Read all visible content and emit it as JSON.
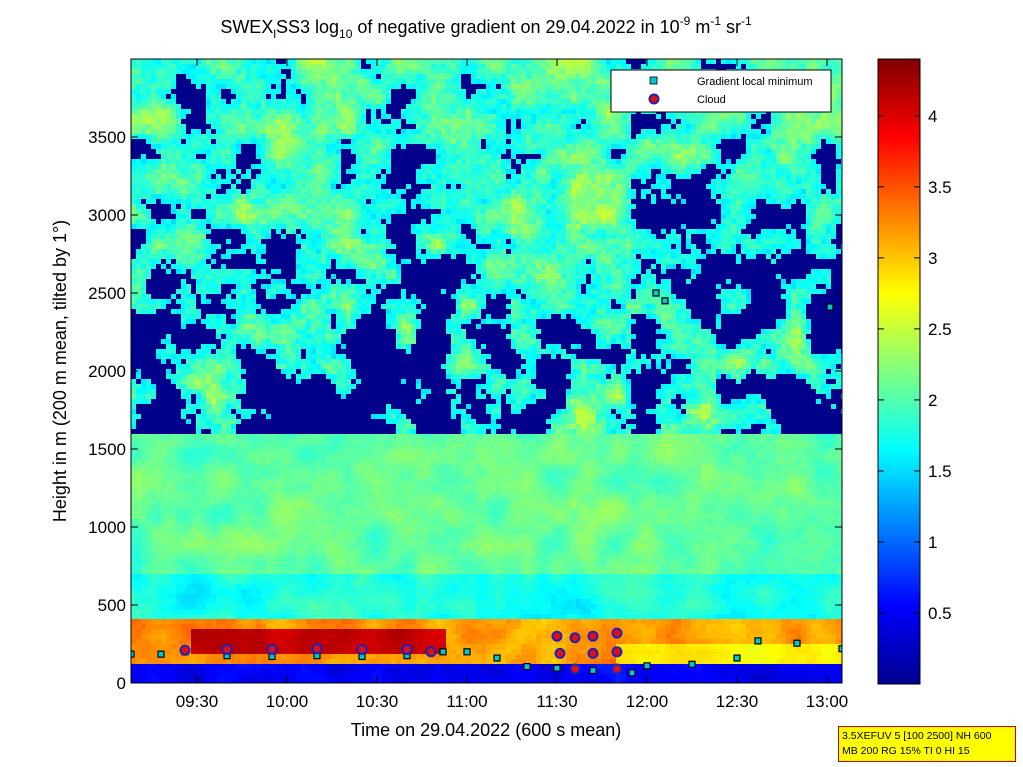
{
  "chart_data": {
    "type": "heatmap",
    "title": {
      "part1": "SWEX",
      "sub1": "l",
      "part2": "SS3 log",
      "sub2": "10",
      "part3": " of negative gradient on 29.04.2022 in 10",
      "sup1": "-9",
      "part4": " m",
      "sup2": "-1",
      "part5": " sr",
      "sup3": "-1"
    },
    "xlabel": "Time on 29.04.2022 (600 s mean)",
    "ylabel": "Height in m (200 m mean, tilted by 1°)",
    "x_range": [
      "09:08",
      "13:05"
    ],
    "x_ticks": [
      "09:30",
      "10:00",
      "10:30",
      "11:00",
      "11:30",
      "12:00",
      "12:30",
      "13:00"
    ],
    "ylim": [
      0,
      4000
    ],
    "y_ticks": [
      0,
      500,
      1000,
      1500,
      2000,
      2500,
      3000,
      3500
    ],
    "colorbar": {
      "range": [
        0,
        4.4
      ],
      "ticks": [
        0.5,
        1,
        1.5,
        2,
        2.5,
        3,
        3.5,
        4
      ],
      "tick_labels": [
        "0.5",
        "1",
        "1.5",
        "2",
        "2.5",
        "3",
        "3.5",
        "4"
      ],
      "colormap": "jet"
    },
    "legend": {
      "placement": "top-right",
      "entries": [
        {
          "label": "Gradient local minimum",
          "marker": "square",
          "color": "#00c8d2"
        },
        {
          "label": "Cloud",
          "marker": "circle",
          "color": "#e01010",
          "edge": "#2020c0"
        }
      ]
    },
    "gradient_local_minimum": [
      {
        "time": "09:08",
        "height": 185
      },
      {
        "time": "09:18",
        "height": 185
      },
      {
        "time": "09:26",
        "height": 200
      },
      {
        "time": "09:40",
        "height": 175
      },
      {
        "time": "09:55",
        "height": 170
      },
      {
        "time": "10:10",
        "height": 175
      },
      {
        "time": "10:25",
        "height": 170
      },
      {
        "time": "10:40",
        "height": 175
      },
      {
        "time": "10:52",
        "height": 200
      },
      {
        "time": "11:00",
        "height": 200
      },
      {
        "time": "11:10",
        "height": 160
      },
      {
        "time": "11:20",
        "height": 105
      },
      {
        "time": "11:30",
        "height": 95
      },
      {
        "time": "11:42",
        "height": 80
      },
      {
        "time": "11:55",
        "height": 65
      },
      {
        "time": "12:00",
        "height": 110
      },
      {
        "time": "12:15",
        "height": 120
      },
      {
        "time": "12:30",
        "height": 160
      },
      {
        "time": "12:37",
        "height": 270
      },
      {
        "time": "12:50",
        "height": 255
      },
      {
        "time": "13:05",
        "height": 220
      },
      {
        "time": "12:03",
        "height": 2500
      },
      {
        "time": "12:06",
        "height": 2450
      },
      {
        "time": "13:01",
        "height": 2410
      }
    ],
    "cloud": [
      {
        "time": "09:26",
        "height": 210
      },
      {
        "time": "09:40",
        "height": 215
      },
      {
        "time": "09:55",
        "height": 215
      },
      {
        "time": "10:10",
        "height": 220
      },
      {
        "time": "10:25",
        "height": 215
      },
      {
        "time": "10:40",
        "height": 215
      },
      {
        "time": "10:48",
        "height": 200
      },
      {
        "time": "11:30",
        "height": 300
      },
      {
        "time": "11:31",
        "height": 190
      },
      {
        "time": "11:36",
        "height": 290
      },
      {
        "time": "11:42",
        "height": 300
      },
      {
        "time": "11:42",
        "height": 190
      },
      {
        "time": "11:50",
        "height": 320
      },
      {
        "time": "11:50",
        "height": 200
      },
      {
        "time": "11:36",
        "height": 90
      },
      {
        "time": "11:50",
        "height": 90
      }
    ]
  },
  "annotation_box": {
    "line1": "3.5XEFUV 5 [100 2500] NH 600",
    "line2": "MB 200 RG 15% TI 0 HI 15"
  }
}
